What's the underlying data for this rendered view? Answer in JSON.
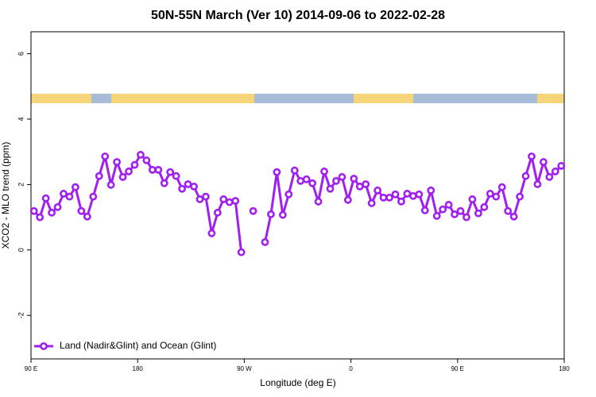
{
  "chart_data": {
    "type": "line",
    "title": "50N-55N March (Ver 10)   2014-09-06 to 2022-02-28",
    "x_label": "Longitude (deg E)",
    "y_label": "XCO2 - MLO trend (ppm)",
    "x": [
      92.5,
      97.5,
      102.5,
      107.5,
      112.5,
      117.5,
      122.5,
      127.5,
      132.5,
      137.5,
      142.5,
      147.5,
      152.5,
      157.5,
      162.5,
      167.5,
      172.5,
      177.5,
      182.5,
      187.5,
      192.5,
      197.5,
      202.5,
      207.5,
      212.5,
      217.5,
      222.5,
      227.5,
      232.5,
      237.5,
      242.5,
      247.5,
      252.5,
      257.5,
      262.5,
      267.5,
      272.5,
      277.5,
      282.5,
      287.5,
      292.5,
      297.5,
      302.5,
      307.5,
      312.5,
      317.5,
      322.5,
      327.5,
      332.5,
      337.5,
      342.5,
      347.5,
      352.5,
      357.5,
      362.5,
      367.5,
      372.5,
      377.5,
      382.5,
      387.5,
      392.5,
      397.5,
      402.5,
      407.5,
      412.5,
      417.5,
      422.5,
      427.5,
      432.5,
      437.5,
      442.5,
      447.5,
      452.5,
      457.5,
      462.5,
      467.5,
      472.5,
      477.5,
      482.5,
      487.5,
      492.5,
      497.5,
      502.5,
      507.5,
      512.5,
      517.5,
      522.5,
      527.5,
      532.5,
      537.5
    ],
    "series": [
      {
        "name": "Land (Nadir&Glint) and Ocean (Glint)",
        "color": "#a020f0",
        "values": [
          1.19,
          1.0,
          1.58,
          1.14,
          1.31,
          1.72,
          1.63,
          1.92,
          1.19,
          1.02,
          1.63,
          2.26,
          2.86,
          1.99,
          2.69,
          2.23,
          2.4,
          2.6,
          2.91,
          2.74,
          2.45,
          2.45,
          2.04,
          2.38,
          2.26,
          1.87,
          2.01,
          1.94,
          1.55,
          1.63,
          0.51,
          1.14,
          1.55,
          1.46,
          1.5,
          -0.07,
          null,
          1.19,
          null,
          0.24,
          1.09,
          2.38,
          1.07,
          1.7,
          2.43,
          2.11,
          2.16,
          2.04,
          1.48,
          2.4,
          1.87,
          2.11,
          2.23,
          1.53,
          2.18,
          1.94,
          2.01,
          1.43,
          1.82,
          1.6,
          1.6,
          1.7,
          1.48,
          1.72,
          1.65,
          1.7,
          1.21,
          1.82,
          1.04,
          1.24,
          1.38,
          1.09,
          1.19,
          1.0,
          1.55,
          1.12,
          1.31,
          1.72,
          1.63,
          1.92,
          1.19,
          1.02,
          1.63,
          2.26,
          2.86,
          2.01,
          2.69,
          2.23,
          2.4,
          2.57
        ]
      }
    ],
    "xlim": [
      90,
      540
    ],
    "xticks": [
      {
        "value": 90,
        "label": "90 E"
      },
      180,
      {
        "value": 270,
        "label": "90 W"
      },
      0,
      {
        "value": 450,
        "label": "90 E"
      },
      {
        "value": 540,
        "label": "180"
      }
    ],
    "ylim": [
      -3.33,
      6.67
    ],
    "yticks": [
      -2,
      0,
      2,
      4,
      6
    ],
    "legend": "bottom-left"
  }
}
